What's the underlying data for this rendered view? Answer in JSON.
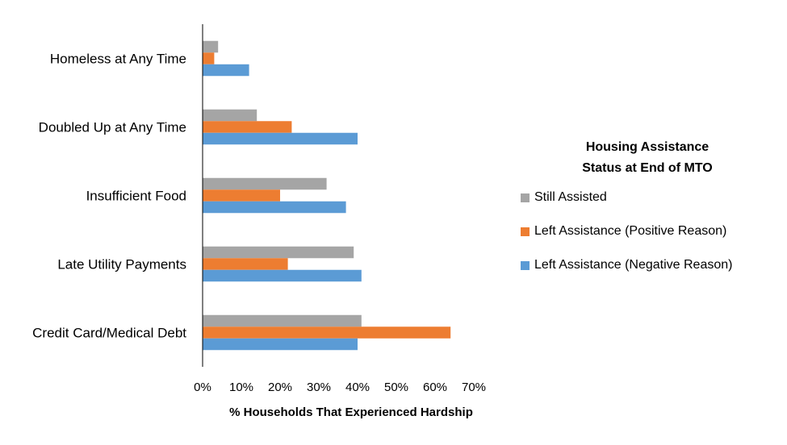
{
  "chart_data": {
    "type": "bar",
    "orientation": "horizontal",
    "categories": [
      "Homeless at Any Time",
      "Doubled Up at Any Time",
      "Insufficient Food",
      "Late Utility Payments",
      "Credit Card/Medical Debt"
    ],
    "series": [
      {
        "name": "Still Assisted",
        "color": "#a5a5a5",
        "values": [
          4,
          14,
          32,
          39,
          41
        ]
      },
      {
        "name": "Left Assistance (Positive Reason)",
        "color": "#ed7d31",
        "values": [
          3,
          23,
          20,
          22,
          64
        ]
      },
      {
        "name": "Left Assistance (Negative Reason)",
        "color": "#5b9bd5",
        "values": [
          12,
          40,
          37,
          41,
          40
        ]
      }
    ],
    "xlabel": "% Households That Experienced Hardship",
    "xlim": [
      0,
      70
    ],
    "xticks": [
      "0%",
      "10%",
      "20%",
      "30%",
      "40%",
      "50%",
      "60%",
      "70%"
    ],
    "grid": false,
    "legend": {
      "title_line1": "Housing Assistance",
      "title_line2": "Status at End of MTO",
      "placement": "right"
    }
  }
}
